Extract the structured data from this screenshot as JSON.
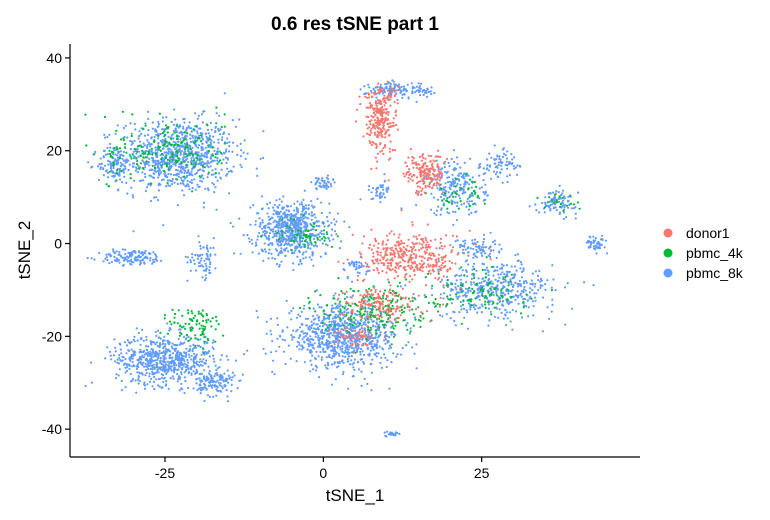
{
  "chart_data": {
    "type": "scatter",
    "title": "0.6 res tSNE part 1",
    "xlabel": "tSNE_1",
    "ylabel": "tSNE_2",
    "xlim": [
      -40,
      50
    ],
    "ylim": [
      -46,
      43
    ],
    "xticks": [
      -25,
      0,
      25
    ],
    "xtick_labels": [
      "-25",
      "0",
      "25"
    ],
    "yticks": [
      40,
      20,
      0,
      -20,
      -40
    ],
    "ytick_labels": [
      "40",
      "20",
      "0",
      "-20",
      "-40"
    ],
    "grid": false,
    "legend_position": "right",
    "series": [
      {
        "name": "donor1",
        "color": "#F8766D",
        "clusters": [
          {
            "center": [
              9,
              27
            ],
            "spread": [
              2.2,
              6.5
            ],
            "n": 260
          },
          {
            "center": [
              16,
              15
            ],
            "spread": [
              2.5,
              3.5
            ],
            "n": 170
          },
          {
            "center": [
              14,
              -3
            ],
            "spread": [
              6.5,
              4.5
            ],
            "n": 360
          },
          {
            "center": [
              9,
              -13
            ],
            "spread": [
              5,
              3
            ],
            "n": 150
          },
          {
            "center": [
              5,
              -20
            ],
            "spread": [
              3,
              2
            ],
            "n": 50
          }
        ]
      },
      {
        "name": "pbmc_4k",
        "color": "#00BA38",
        "clusters": [
          {
            "center": [
              -24,
              20
            ],
            "spread": [
              7,
              6
            ],
            "n": 180
          },
          {
            "center": [
              -20,
              -18
            ],
            "spread": [
              3.5,
              4
            ],
            "n": 90
          },
          {
            "center": [
              -3,
              2
            ],
            "spread": [
              4,
              3
            ],
            "n": 60
          },
          {
            "center": [
              8,
              -14
            ],
            "spread": [
              7,
              4.5
            ],
            "n": 220
          },
          {
            "center": [
              25,
              -10
            ],
            "spread": [
              7,
              4
            ],
            "n": 90
          },
          {
            "center": [
              21,
              11
            ],
            "spread": [
              3.5,
              3
            ],
            "n": 40
          },
          {
            "center": [
              37,
              9
            ],
            "spread": [
              2.5,
              2
            ],
            "n": 20
          },
          {
            "center": [
              -33,
              18
            ],
            "spread": [
              2,
              3
            ],
            "n": 20
          }
        ]
      },
      {
        "name": "pbmc_8k",
        "color": "#619CFF",
        "clusters": [
          {
            "center": [
              -23,
              19
            ],
            "spread": [
              7.5,
              6.5
            ],
            "n": 900
          },
          {
            "center": [
              -33,
              17
            ],
            "spread": [
              2.2,
              3.5
            ],
            "n": 100
          },
          {
            "center": [
              -30,
              -3
            ],
            "spread": [
              4.5,
              1.4
            ],
            "n": 130
          },
          {
            "center": [
              -19,
              -3
            ],
            "spread": [
              2,
              3.5
            ],
            "n": 70
          },
          {
            "center": [
              -25,
              -25
            ],
            "spread": [
              6.5,
              4.5
            ],
            "n": 650
          },
          {
            "center": [
              -17,
              -30
            ],
            "spread": [
              2.5,
              2.5
            ],
            "n": 130
          },
          {
            "center": [
              -5,
              3
            ],
            "spread": [
              5,
              5
            ],
            "n": 650
          },
          {
            "center": [
              3,
              -20
            ],
            "spread": [
              7.5,
              5.5
            ],
            "n": 850
          },
          {
            "center": [
              11,
              33
            ],
            "spread": [
              3.5,
              1.5
            ],
            "n": 120
          },
          {
            "center": [
              16,
              33
            ],
            "spread": [
              1.5,
              1.5
            ],
            "n": 25
          },
          {
            "center": [
              21,
              12
            ],
            "spread": [
              4,
              5
            ],
            "n": 220
          },
          {
            "center": [
              28,
              17
            ],
            "spread": [
              2.5,
              2.5
            ],
            "n": 70
          },
          {
            "center": [
              27,
              -10
            ],
            "spread": [
              8,
              5
            ],
            "n": 450
          },
          {
            "center": [
              37,
              9
            ],
            "spread": [
              2.5,
              2.2
            ],
            "n": 90
          },
          {
            "center": [
              43,
              0
            ],
            "spread": [
              1.5,
              1.3
            ],
            "n": 50
          },
          {
            "center": [
              0,
              13
            ],
            "spread": [
              1.2,
              1.2
            ],
            "n": 40
          },
          {
            "center": [
              5,
              -5
            ],
            "spread": [
              1.8,
              2
            ],
            "n": 40
          },
          {
            "center": [
              9,
              11
            ],
            "spread": [
              1.5,
              2
            ],
            "n": 40
          },
          {
            "center": [
              11,
              -41
            ],
            "spread": [
              1,
              0.4
            ],
            "n": 25
          },
          {
            "center": [
              24,
              -1
            ],
            "spread": [
              3,
              2
            ],
            "n": 80
          }
        ]
      }
    ]
  }
}
